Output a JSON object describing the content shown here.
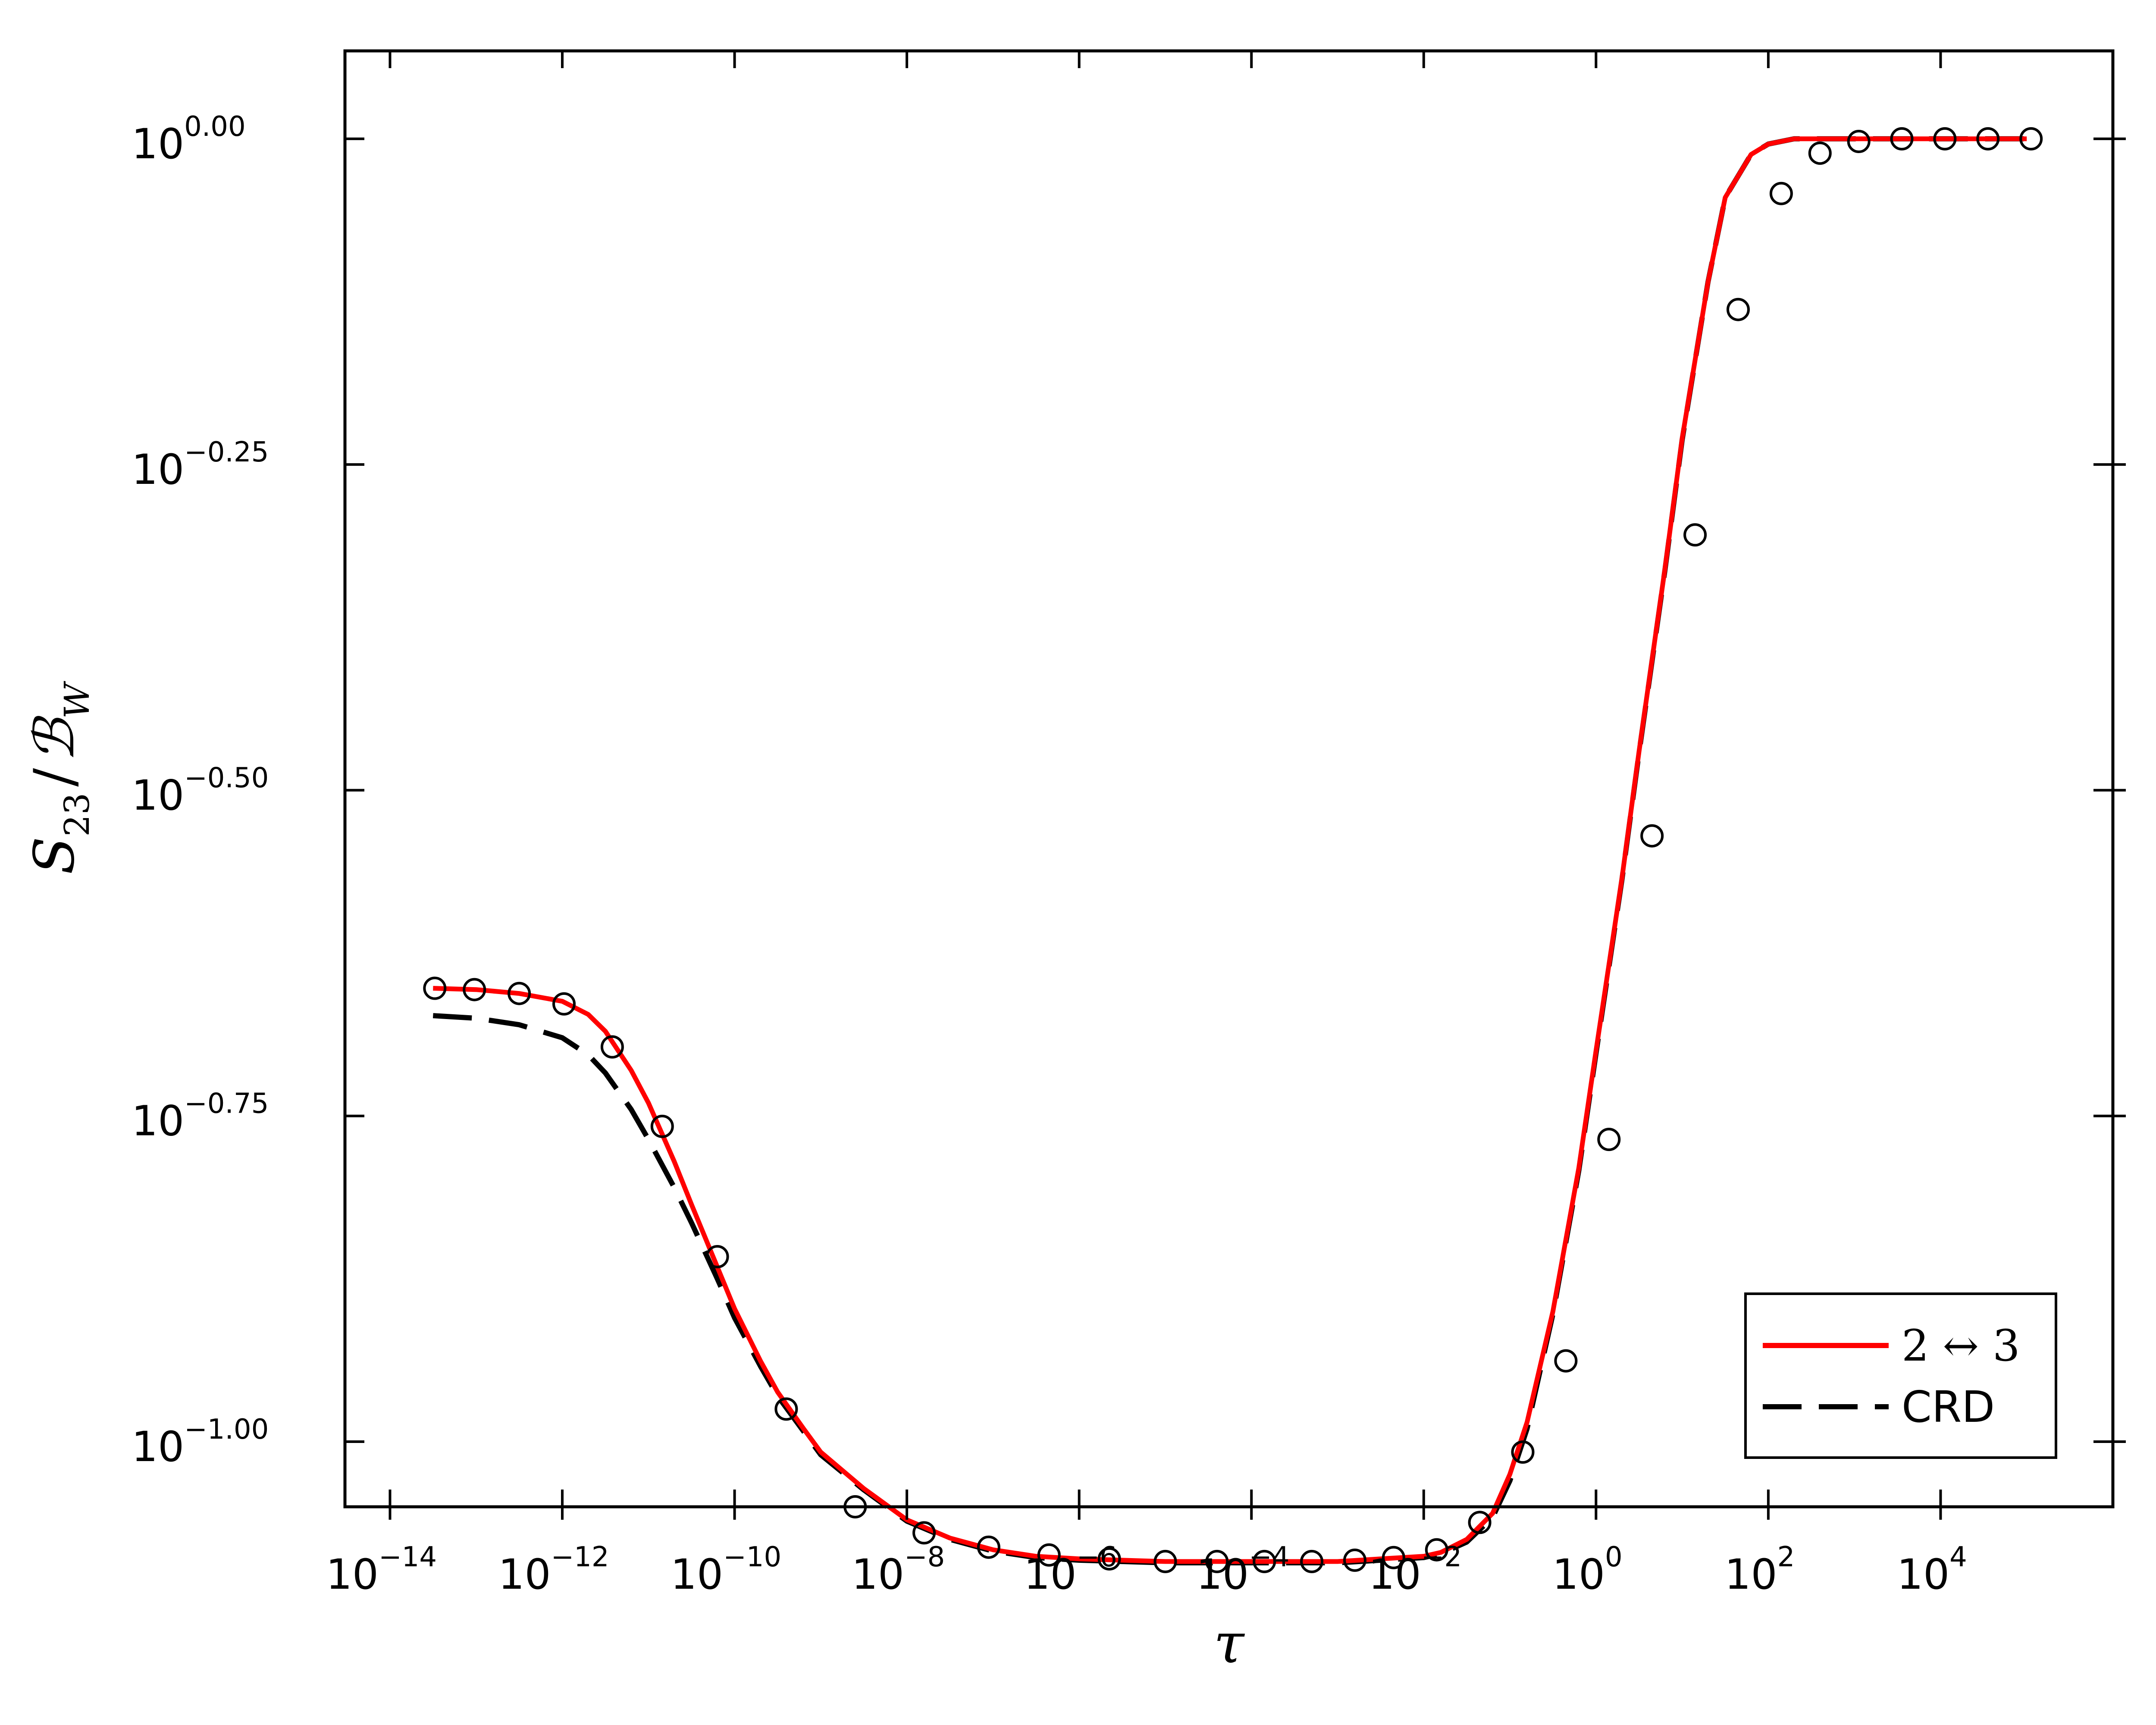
{
  "chart_data": {
    "type": "line",
    "xscale": "log",
    "yscale": "log",
    "xlabel": "τ",
    "ylabel": "S₂₃ / ℬ_W",
    "xlim": [
      3e-15,
      1000000.0
    ],
    "ylim_log10": [
      -1.05,
      0.0675
    ],
    "grid": false,
    "legend_position": "bottom-right",
    "x_ticks": [
      {
        "base": "10",
        "exp": "−14",
        "value": 1e-14
      },
      {
        "base": "10",
        "exp": "−12",
        "value": 1e-12
      },
      {
        "base": "10",
        "exp": "−10",
        "value": 1e-10
      },
      {
        "base": "10",
        "exp": "−8",
        "value": 1e-08
      },
      {
        "base": "10",
        "exp": "−6",
        "value": 1e-06
      },
      {
        "base": "10",
        "exp": "−4",
        "value": 0.0001
      },
      {
        "base": "10",
        "exp": "−2",
        "value": 0.01
      },
      {
        "base": "10",
        "exp": "0",
        "value": 1
      },
      {
        "base": "10",
        "exp": "2",
        "value": 100
      },
      {
        "base": "10",
        "exp": "4",
        "value": 10000
      }
    ],
    "y_ticks": [
      {
        "base": "10",
        "exp": "0.00",
        "log10": 0.0
      },
      {
        "base": "10",
        "exp": "−0.25",
        "log10": -0.25
      },
      {
        "base": "10",
        "exp": "−0.50",
        "log10": -0.5
      },
      {
        "base": "10",
        "exp": "−0.75",
        "log10": -0.75
      },
      {
        "base": "10",
        "exp": "−1.00",
        "log10": -1.0
      }
    ],
    "series": [
      {
        "name": "2 ↔ 3",
        "style": "solid",
        "color": "#ff0000",
        "log10_x": [
          -13.5,
          -13,
          -12.5,
          -12,
          -11.7,
          -11.5,
          -11.2,
          -11,
          -10.7,
          -10.5,
          -10.2,
          -10,
          -9.7,
          -9.5,
          -9.2,
          -9,
          -8.5,
          -8,
          -7.5,
          -7,
          -6.5,
          -6,
          -5,
          -4,
          -3,
          -2.5,
          -2,
          -1.8,
          -1.5,
          -1.2,
          -1,
          -0.8,
          -0.5,
          -0.2,
          0,
          0.3,
          0.5,
          0.8,
          1,
          1.3,
          1.5,
          1.8,
          2,
          2.3,
          2.5,
          3,
          3.5,
          4,
          4.5,
          5
        ],
        "log10_y": [
          -0.652,
          -0.653,
          -0.656,
          -0.662,
          -0.672,
          -0.685,
          -0.715,
          -0.74,
          -0.785,
          -0.818,
          -0.866,
          -0.898,
          -0.938,
          -0.962,
          -0.99,
          -1.008,
          -1.036,
          -1.06,
          -1.074,
          -1.083,
          -1.088,
          -1.09,
          -1.092,
          -1.092,
          -1.092,
          -1.09,
          -1.088,
          -1.085,
          -1.075,
          -1.055,
          -1.025,
          -0.985,
          -0.9,
          -0.79,
          -0.7,
          -0.568,
          -0.47,
          -0.33,
          -0.23,
          -0.11,
          -0.045,
          -0.012,
          -0.004,
          0.0,
          0.0,
          0.0,
          0.0,
          0.0,
          0.0,
          0.0
        ]
      },
      {
        "name": "CRD",
        "style": "dashed",
        "color": "#000000",
        "log10_x": [
          -13.5,
          -13,
          -12.5,
          -12,
          -11.7,
          -11.5,
          -11.2,
          -11,
          -10.7,
          -10.5,
          -10.2,
          -10,
          -9.7,
          -9.5,
          -9.2,
          -9,
          -8.5,
          -8,
          -7.5,
          -7,
          -6.5,
          -6,
          -5,
          -4,
          -3,
          -2.5,
          -2,
          -1.8,
          -1.5,
          -1.2,
          -1,
          -0.8,
          -0.5,
          -0.2,
          0,
          0.3,
          0.5,
          0.8,
          1,
          1.3,
          1.5,
          1.8,
          2,
          2.3,
          2.5,
          3,
          3.5,
          4,
          4.5,
          5
        ],
        "log10_y": [
          -0.673,
          -0.675,
          -0.68,
          -0.69,
          -0.703,
          -0.717,
          -0.745,
          -0.768,
          -0.805,
          -0.832,
          -0.875,
          -0.905,
          -0.942,
          -0.965,
          -0.992,
          -1.01,
          -1.037,
          -1.061,
          -1.075,
          -1.084,
          -1.089,
          -1.091,
          -1.093,
          -1.093,
          -1.093,
          -1.091,
          -1.089,
          -1.086,
          -1.077,
          -1.058,
          -1.03,
          -0.99,
          -0.902,
          -0.792,
          -0.702,
          -0.569,
          -0.471,
          -0.331,
          -0.231,
          -0.11,
          -0.045,
          -0.012,
          -0.004,
          0.0,
          0.0,
          0.0,
          0.0,
          0.0,
          0.0,
          0.0
        ]
      },
      {
        "name": "markers",
        "style": "markers",
        "color": "#000000",
        "log10_x": [
          -13.48,
          -13.02,
          -12.5,
          -11.98,
          -11.42,
          -10.84,
          -10.2,
          -9.4,
          -8.6,
          -7.8,
          -7.05,
          -6.35,
          -5.65,
          -5.0,
          -4.4,
          -3.85,
          -3.3,
          -2.8,
          -2.35,
          -1.85,
          -1.35,
          -0.85,
          -0.35,
          0.15,
          0.65,
          1.15,
          1.65,
          2.15,
          2.6,
          3.05,
          3.55,
          4.05,
          4.55,
          5.05
        ],
        "log10_y": [
          -0.652,
          -0.653,
          -0.656,
          -0.664,
          -0.697,
          -0.758,
          -0.858,
          -0.975,
          -1.05,
          -1.07,
          -1.081,
          -1.087,
          -1.09,
          -1.092,
          -1.092,
          -1.092,
          -1.092,
          -1.091,
          -1.089,
          -1.083,
          -1.062,
          -1.008,
          -0.938,
          -0.768,
          -0.535,
          -0.304,
          -0.131,
          -0.042,
          -0.011,
          -0.002,
          0.0,
          0.0,
          0.0,
          0.0
        ]
      }
    ]
  },
  "legend": [
    {
      "label": "2 ↔ 3",
      "style": "solid",
      "color": "#ff0000"
    },
    {
      "label": "CRD",
      "style": "dashed",
      "color": "#000000"
    }
  ],
  "axis_titles": {
    "x": "τ",
    "y_main": "S",
    "y_sub": "23",
    "y_slash": "/",
    "y_main2": "ℬ",
    "y_sub2": "W"
  }
}
